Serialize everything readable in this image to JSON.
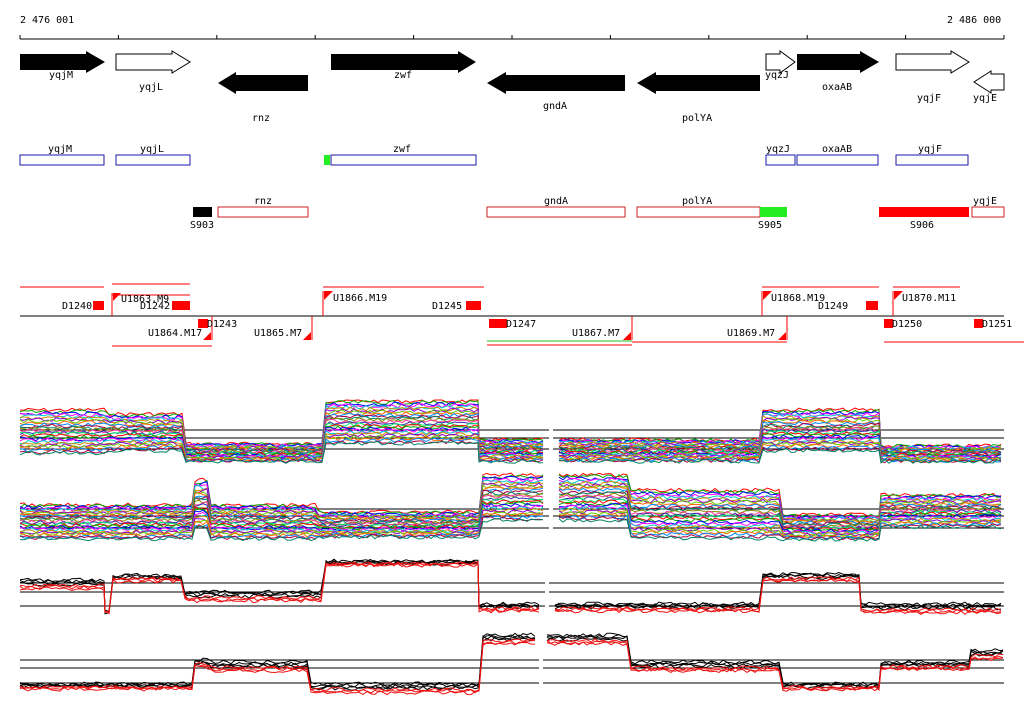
{
  "ruler": {
    "start_label": "2 476 001",
    "end_label": "2 486 000"
  },
  "colors": {
    "gene_fill": "#000000",
    "gene_outline": "#000000",
    "cds_box": "#1a1aaa",
    "cds_box_reverse": "#cc2222",
    "promoter_red": "#ff0000",
    "promoter_green": "#22ee22",
    "segment_black": "#000000",
    "expression_line": "#000000",
    "expression_red": "#ee1111"
  },
  "genes_forward": [
    {
      "label": "yqjM",
      "filled": true
    },
    {
      "label": "yqjL",
      "filled": false
    },
    {
      "label": "zwf",
      "filled": true
    },
    {
      "label": "yqzJ",
      "filled": false
    },
    {
      "label": "oxaAB",
      "filled": true
    },
    {
      "label": "yqjF",
      "filled": false
    }
  ],
  "genes_reverse": [
    {
      "label": "rnz",
      "filled": true
    },
    {
      "label": "gndA",
      "filled": true
    },
    {
      "label": "polYA",
      "filled": true
    },
    {
      "label": "yqjE",
      "filled": false
    }
  ],
  "cds_forward": [
    {
      "label": "yqjM"
    },
    {
      "label": "yqjL"
    },
    {
      "label": "zwf"
    },
    {
      "label": "yqzJ"
    },
    {
      "label": "oxaAB"
    },
    {
      "label": "yqjF"
    }
  ],
  "cds_reverse": [
    {
      "label": "rnz"
    },
    {
      "label": "gndA"
    },
    {
      "label": "polYA"
    },
    {
      "label": "yqjE"
    }
  ],
  "segments": [
    {
      "label": "S903"
    },
    {
      "label": "S905"
    },
    {
      "label": "S906"
    }
  ],
  "upstream_features": [
    {
      "label": "U1863.M9"
    },
    {
      "label": "U1866.M19"
    },
    {
      "label": "U1868.M19"
    },
    {
      "label": "U1870.M11"
    }
  ],
  "downstream_features": [
    {
      "label": "U1864.M17"
    },
    {
      "label": "U1865.M7"
    },
    {
      "label": "U1867.M7"
    },
    {
      "label": "U1869.M7"
    }
  ],
  "d_features_top": [
    {
      "label": "D1240"
    },
    {
      "label": "D1242"
    },
    {
      "label": "D1245"
    },
    {
      "label": "D1249"
    }
  ],
  "d_features_bottom": [
    {
      "label": "D1243"
    },
    {
      "label": "D1247"
    },
    {
      "label": "D1250"
    },
    {
      "label": "D1251"
    }
  ]
}
